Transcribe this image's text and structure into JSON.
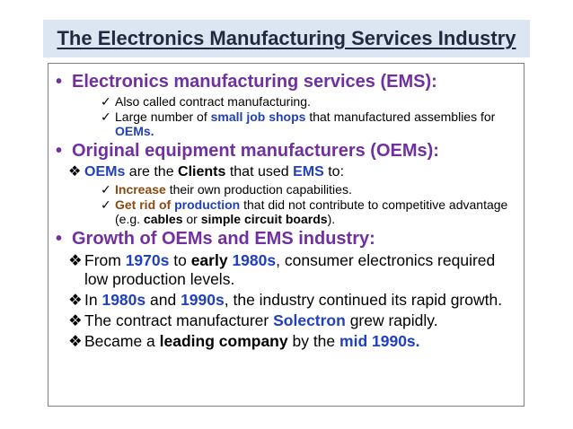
{
  "title": "The Electronics Manufacturing Services Industry",
  "sections": [
    {
      "heading": "Electronics manufacturing services (EMS):",
      "items": [
        {
          "text": "Also called contract manufacturing."
        },
        {
          "a": "Large number of ",
          "b": "small job shops",
          "c": " that manufactured assemblies for ",
          "d": "OEMs."
        }
      ]
    },
    {
      "heading": "Original equipment manufacturers (OEMs):",
      "sub": {
        "a": "OEMs",
        "b": " are the ",
        "c": "Clients",
        "d": " that used ",
        "e": "EMS",
        "f": " to:"
      },
      "items": [
        {
          "a": "Increase",
          "b": " their own production capabilities."
        },
        {
          "a": "Get rid of ",
          "b": "production",
          "c": " that did not contribute to competitive advantage (e.g. ",
          "d": "cables",
          "e": " or ",
          "f": "simple circuit boards",
          "g": ")."
        }
      ]
    },
    {
      "heading": "Growth of OEMs and EMS industry:",
      "items": [
        {
          "a": " From ",
          "b": "1970s",
          "c": " to ",
          "d": "early",
          "e": " ",
          "f": "1980s",
          "g": ", consumer electronics required low production levels."
        },
        {
          "a": " In ",
          "b": "1980s",
          "c": " and ",
          "d": "1990s",
          "e": ", the industry continued its rapid growth."
        },
        {
          "a": "The contract manufacturer ",
          "b": "Solectron",
          "c": " grew rapidly."
        },
        {
          "a": "Became a ",
          "b": "leading company",
          "c": " by the ",
          "d": "mid 1990s."
        }
      ]
    }
  ],
  "symbols": {
    "bullet": "•",
    "check": "✓",
    "diamond": "❖"
  },
  "colors": {
    "title_bg": "#dce6f2",
    "heading": "#7030a0",
    "highlight": "#2040c0",
    "brown": "#8a4a10"
  }
}
